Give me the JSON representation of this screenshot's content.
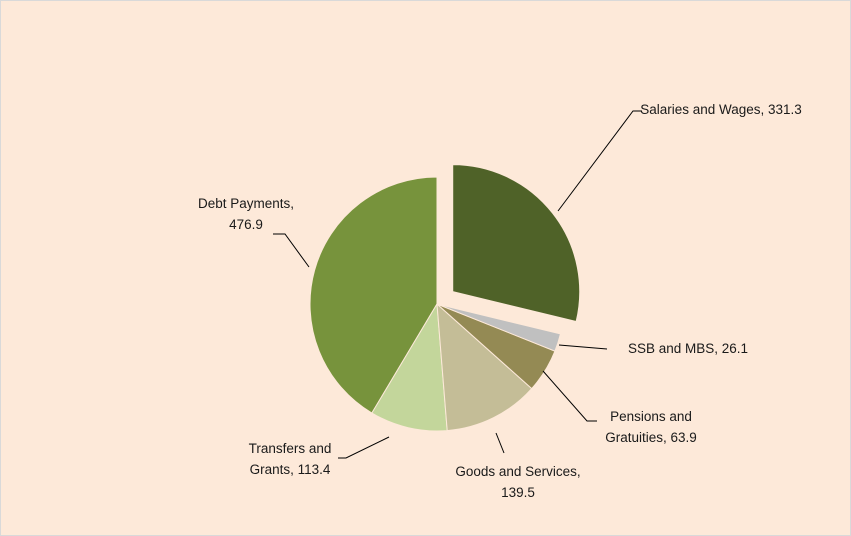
{
  "chart_data": {
    "type": "pie",
    "labels": [
      "Salaries and Wages, 331.3",
      "SSB and MBS, 26.1",
      "Pensions and Gratuities, 63.9",
      "Goods and Services, 139.5",
      "Transfers and Grants, 113.4",
      "Debt Payments, 476.9"
    ],
    "values": [
      331.3,
      26.1,
      63.9,
      139.5,
      113.4,
      476.9
    ],
    "colors": [
      "#4f6228",
      "#c0c0c0",
      "#948a54",
      "#c4bd97",
      "#c3d69b",
      "#77933c"
    ],
    "exploded": [
      0
    ]
  }
}
